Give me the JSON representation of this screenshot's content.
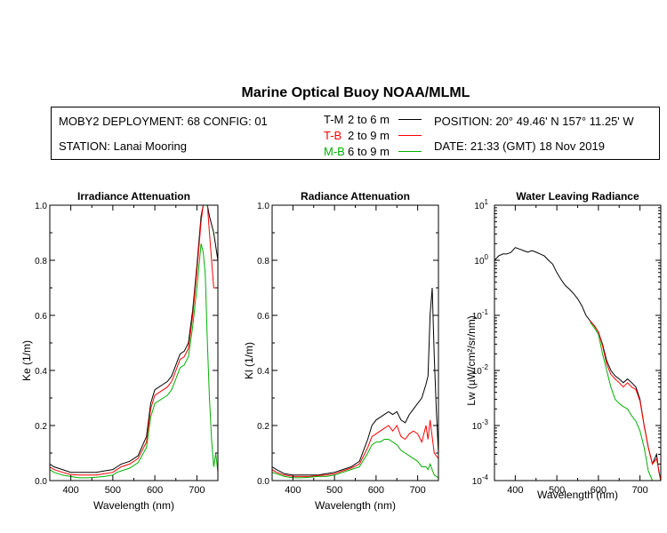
{
  "title": "Marine Optical Buoy NOAA/MLML",
  "info": {
    "deployment": "MOBY2 DEPLOYMENT: 68 CONFIG: 01",
    "station": "STATION: Lanai Mooring",
    "position": "POSITION: 20° 49.46' N   157° 11.25' W",
    "date": "DATE: 21:33 (GMT) 18 Nov 2019"
  },
  "legend": [
    {
      "name": "T-M",
      "range": "2 to 6  m",
      "color": "#000000"
    },
    {
      "name": "T-B",
      "range": "2 to 9  m",
      "color": "#ff0000"
    },
    {
      "name": "M-B",
      "range": "6 to 9  m",
      "color": "#00b000"
    }
  ],
  "chart_data": [
    {
      "type": "line",
      "title": "Irradiance Attenuation",
      "xlabel": "Wavelength (nm)",
      "ylabel": "Ke  (1/m)",
      "xlim": [
        350,
        750
      ],
      "ylim": [
        0,
        1.0
      ],
      "xticks": [
        400,
        500,
        600,
        700
      ],
      "xtick_labels": [
        "400",
        "500",
        "600",
        "700"
      ],
      "yticks": [
        0,
        0.2,
        0.4,
        0.6,
        0.8,
        1.0
      ],
      "ytick_labels": [
        "0.0",
        "0.2",
        "0.4",
        "0.6",
        "0.8",
        "1.0"
      ],
      "series": [
        {
          "name": "T-M",
          "x": [
            350,
            360,
            380,
            400,
            420,
            440,
            460,
            480,
            500,
            510,
            520,
            540,
            560,
            580,
            590,
            600,
            610,
            620,
            630,
            640,
            650,
            660,
            670,
            680,
            690,
            700,
            710,
            715,
            720,
            725,
            730,
            740,
            750
          ],
          "y": [
            0.06,
            0.05,
            0.04,
            0.03,
            0.03,
            0.03,
            0.03,
            0.035,
            0.04,
            0.05,
            0.06,
            0.07,
            0.09,
            0.16,
            0.28,
            0.33,
            0.34,
            0.35,
            0.36,
            0.38,
            0.42,
            0.46,
            0.47,
            0.5,
            0.62,
            0.78,
            0.96,
            1.0,
            1.0,
            1.0,
            0.96,
            0.9,
            0.8
          ]
        },
        {
          "name": "T-B",
          "x": [
            350,
            360,
            380,
            400,
            420,
            440,
            460,
            480,
            500,
            510,
            520,
            540,
            560,
            580,
            590,
            600,
            610,
            620,
            630,
            640,
            650,
            660,
            670,
            680,
            690,
            700,
            710,
            715,
            720,
            725,
            730,
            740,
            750
          ],
          "y": [
            0.05,
            0.04,
            0.03,
            0.022,
            0.02,
            0.02,
            0.02,
            0.025,
            0.03,
            0.04,
            0.05,
            0.06,
            0.08,
            0.14,
            0.26,
            0.31,
            0.32,
            0.33,
            0.34,
            0.36,
            0.4,
            0.44,
            0.45,
            0.48,
            0.6,
            0.76,
            0.94,
            1.0,
            1.0,
            1.0,
            0.9,
            0.7,
            0.7
          ]
        },
        {
          "name": "M-B",
          "x": [
            350,
            360,
            380,
            400,
            420,
            440,
            460,
            480,
            500,
            510,
            520,
            540,
            560,
            580,
            590,
            600,
            610,
            620,
            630,
            640,
            650,
            660,
            670,
            680,
            690,
            700,
            710,
            715,
            720,
            725,
            730,
            735,
            740,
            745,
            750
          ],
          "y": [
            0.04,
            0.03,
            0.02,
            0.015,
            0.01,
            0.01,
            0.012,
            0.015,
            0.02,
            0.03,
            0.035,
            0.045,
            0.065,
            0.12,
            0.23,
            0.28,
            0.29,
            0.3,
            0.31,
            0.33,
            0.37,
            0.41,
            0.42,
            0.45,
            0.56,
            0.7,
            0.86,
            0.83,
            0.75,
            0.5,
            0.3,
            0.15,
            0.05,
            0.1,
            0.03
          ]
        }
      ]
    },
    {
      "type": "line",
      "title": "Radiance Attenuation",
      "xlabel": "Wavelength (nm)",
      "ylabel": "Kl  (1/m)",
      "xlim": [
        350,
        750
      ],
      "ylim": [
        0,
        1.0
      ],
      "xticks": [
        400,
        500,
        600,
        700
      ],
      "xtick_labels": [
        "400",
        "500",
        "600",
        "700"
      ],
      "yticks": [
        0,
        0.2,
        0.4,
        0.6,
        0.8,
        1.0
      ],
      "ytick_labels": [
        "0.0",
        "0.2",
        "0.4",
        "0.6",
        "0.8",
        "1.0"
      ],
      "series": [
        {
          "name": "T-M",
          "x": [
            350,
            360,
            380,
            400,
            420,
            440,
            460,
            480,
            500,
            520,
            540,
            560,
            580,
            590,
            600,
            610,
            620,
            630,
            640,
            650,
            660,
            670,
            680,
            690,
            700,
            710,
            720,
            725,
            730,
            735,
            740,
            745,
            750
          ],
          "y": [
            0.05,
            0.04,
            0.025,
            0.02,
            0.02,
            0.02,
            0.02,
            0.025,
            0.03,
            0.04,
            0.05,
            0.07,
            0.15,
            0.2,
            0.22,
            0.23,
            0.24,
            0.25,
            0.24,
            0.25,
            0.22,
            0.21,
            0.24,
            0.26,
            0.28,
            0.3,
            0.35,
            0.38,
            0.6,
            0.7,
            0.45,
            0.25,
            0.1
          ]
        },
        {
          "name": "T-B",
          "x": [
            350,
            360,
            380,
            400,
            420,
            440,
            460,
            480,
            500,
            520,
            540,
            560,
            580,
            590,
            600,
            610,
            620,
            630,
            640,
            650,
            660,
            670,
            680,
            690,
            700,
            710,
            720,
            725,
            730,
            740,
            750
          ],
          "y": [
            0.04,
            0.03,
            0.02,
            0.015,
            0.015,
            0.015,
            0.018,
            0.02,
            0.025,
            0.035,
            0.045,
            0.06,
            0.12,
            0.16,
            0.17,
            0.18,
            0.19,
            0.2,
            0.18,
            0.2,
            0.16,
            0.15,
            0.17,
            0.18,
            0.17,
            0.14,
            0.2,
            0.15,
            0.22,
            0.1,
            0.08
          ]
        },
        {
          "name": "M-B",
          "x": [
            350,
            360,
            380,
            400,
            420,
            440,
            460,
            480,
            500,
            520,
            540,
            560,
            580,
            590,
            600,
            610,
            620,
            630,
            640,
            650,
            660,
            670,
            680,
            690,
            700,
            710,
            720,
            725,
            730,
            740,
            750
          ],
          "y": [
            0.03,
            0.025,
            0.015,
            0.01,
            0.01,
            0.012,
            0.015,
            0.015,
            0.02,
            0.03,
            0.04,
            0.05,
            0.1,
            0.13,
            0.14,
            0.14,
            0.15,
            0.15,
            0.14,
            0.13,
            0.11,
            0.1,
            0.09,
            0.08,
            0.07,
            0.05,
            0.05,
            0.04,
            0.06,
            0.02,
            0.01
          ]
        }
      ]
    },
    {
      "type": "line",
      "title": "Water Leaving Radiance",
      "xlabel": "Wavelength (nm)",
      "ylabel": "Lw  (µW/cm²/sr/nm)",
      "log_y": true,
      "xlim": [
        350,
        750
      ],
      "ylim": [
        0.0001,
        10
      ],
      "xticks": [
        400,
        500,
        600,
        700
      ],
      "xtick_labels": [
        "400",
        "500",
        "600",
        "700"
      ],
      "yticks": [
        0.0001,
        0.001,
        0.01,
        0.1,
        1,
        10
      ],
      "ytick_base": "10",
      "ytick_exponents": [
        "-4",
        "-3",
        "-2",
        "-1",
        "0",
        "1"
      ],
      "series": [
        {
          "name": "T-M",
          "x": [
            350,
            360,
            370,
            380,
            390,
            400,
            410,
            420,
            430,
            440,
            450,
            460,
            470,
            480,
            490,
            500,
            510,
            520,
            530,
            540,
            550,
            560,
            570,
            580,
            590,
            600,
            610,
            620,
            630,
            640,
            650,
            660,
            670,
            680,
            690,
            700,
            710,
            720,
            730,
            740,
            745,
            750
          ],
          "y": [
            1.0,
            1.2,
            1.3,
            1.3,
            1.4,
            1.7,
            1.6,
            1.5,
            1.4,
            1.5,
            1.4,
            1.3,
            1.2,
            1.0,
            0.85,
            0.6,
            0.45,
            0.35,
            0.3,
            0.25,
            0.2,
            0.15,
            0.1,
            0.08,
            0.065,
            0.05,
            0.03,
            0.015,
            0.01,
            0.008,
            0.007,
            0.006,
            0.007,
            0.006,
            0.005,
            0.003,
            0.001,
            0.0004,
            0.0002,
            0.0003,
            0.00015,
            0.0001
          ]
        },
        {
          "name": "T-B",
          "x": [
            580,
            590,
            600,
            610,
            620,
            630,
            640,
            650,
            660,
            670,
            680,
            690,
            700,
            710,
            720,
            730,
            740,
            750
          ],
          "y": [
            0.08,
            0.065,
            0.05,
            0.028,
            0.013,
            0.0085,
            0.007,
            0.006,
            0.005,
            0.006,
            0.005,
            0.0045,
            0.0028,
            0.001,
            0.0004,
            0.0002,
            0.00025,
            0.0001
          ]
        },
        {
          "name": "M-B",
          "x": [
            580,
            590,
            600,
            610,
            620,
            630,
            640,
            650,
            660,
            670,
            680,
            690,
            700,
            710,
            720,
            730,
            740,
            750
          ],
          "y": [
            0.075,
            0.06,
            0.045,
            0.02,
            0.01,
            0.005,
            0.003,
            0.0025,
            0.0022,
            0.002,
            0.0015,
            0.0012,
            0.0008,
            0.0004,
            0.00015,
            0.0001,
            8e-05,
            8e-05
          ]
        }
      ]
    }
  ]
}
